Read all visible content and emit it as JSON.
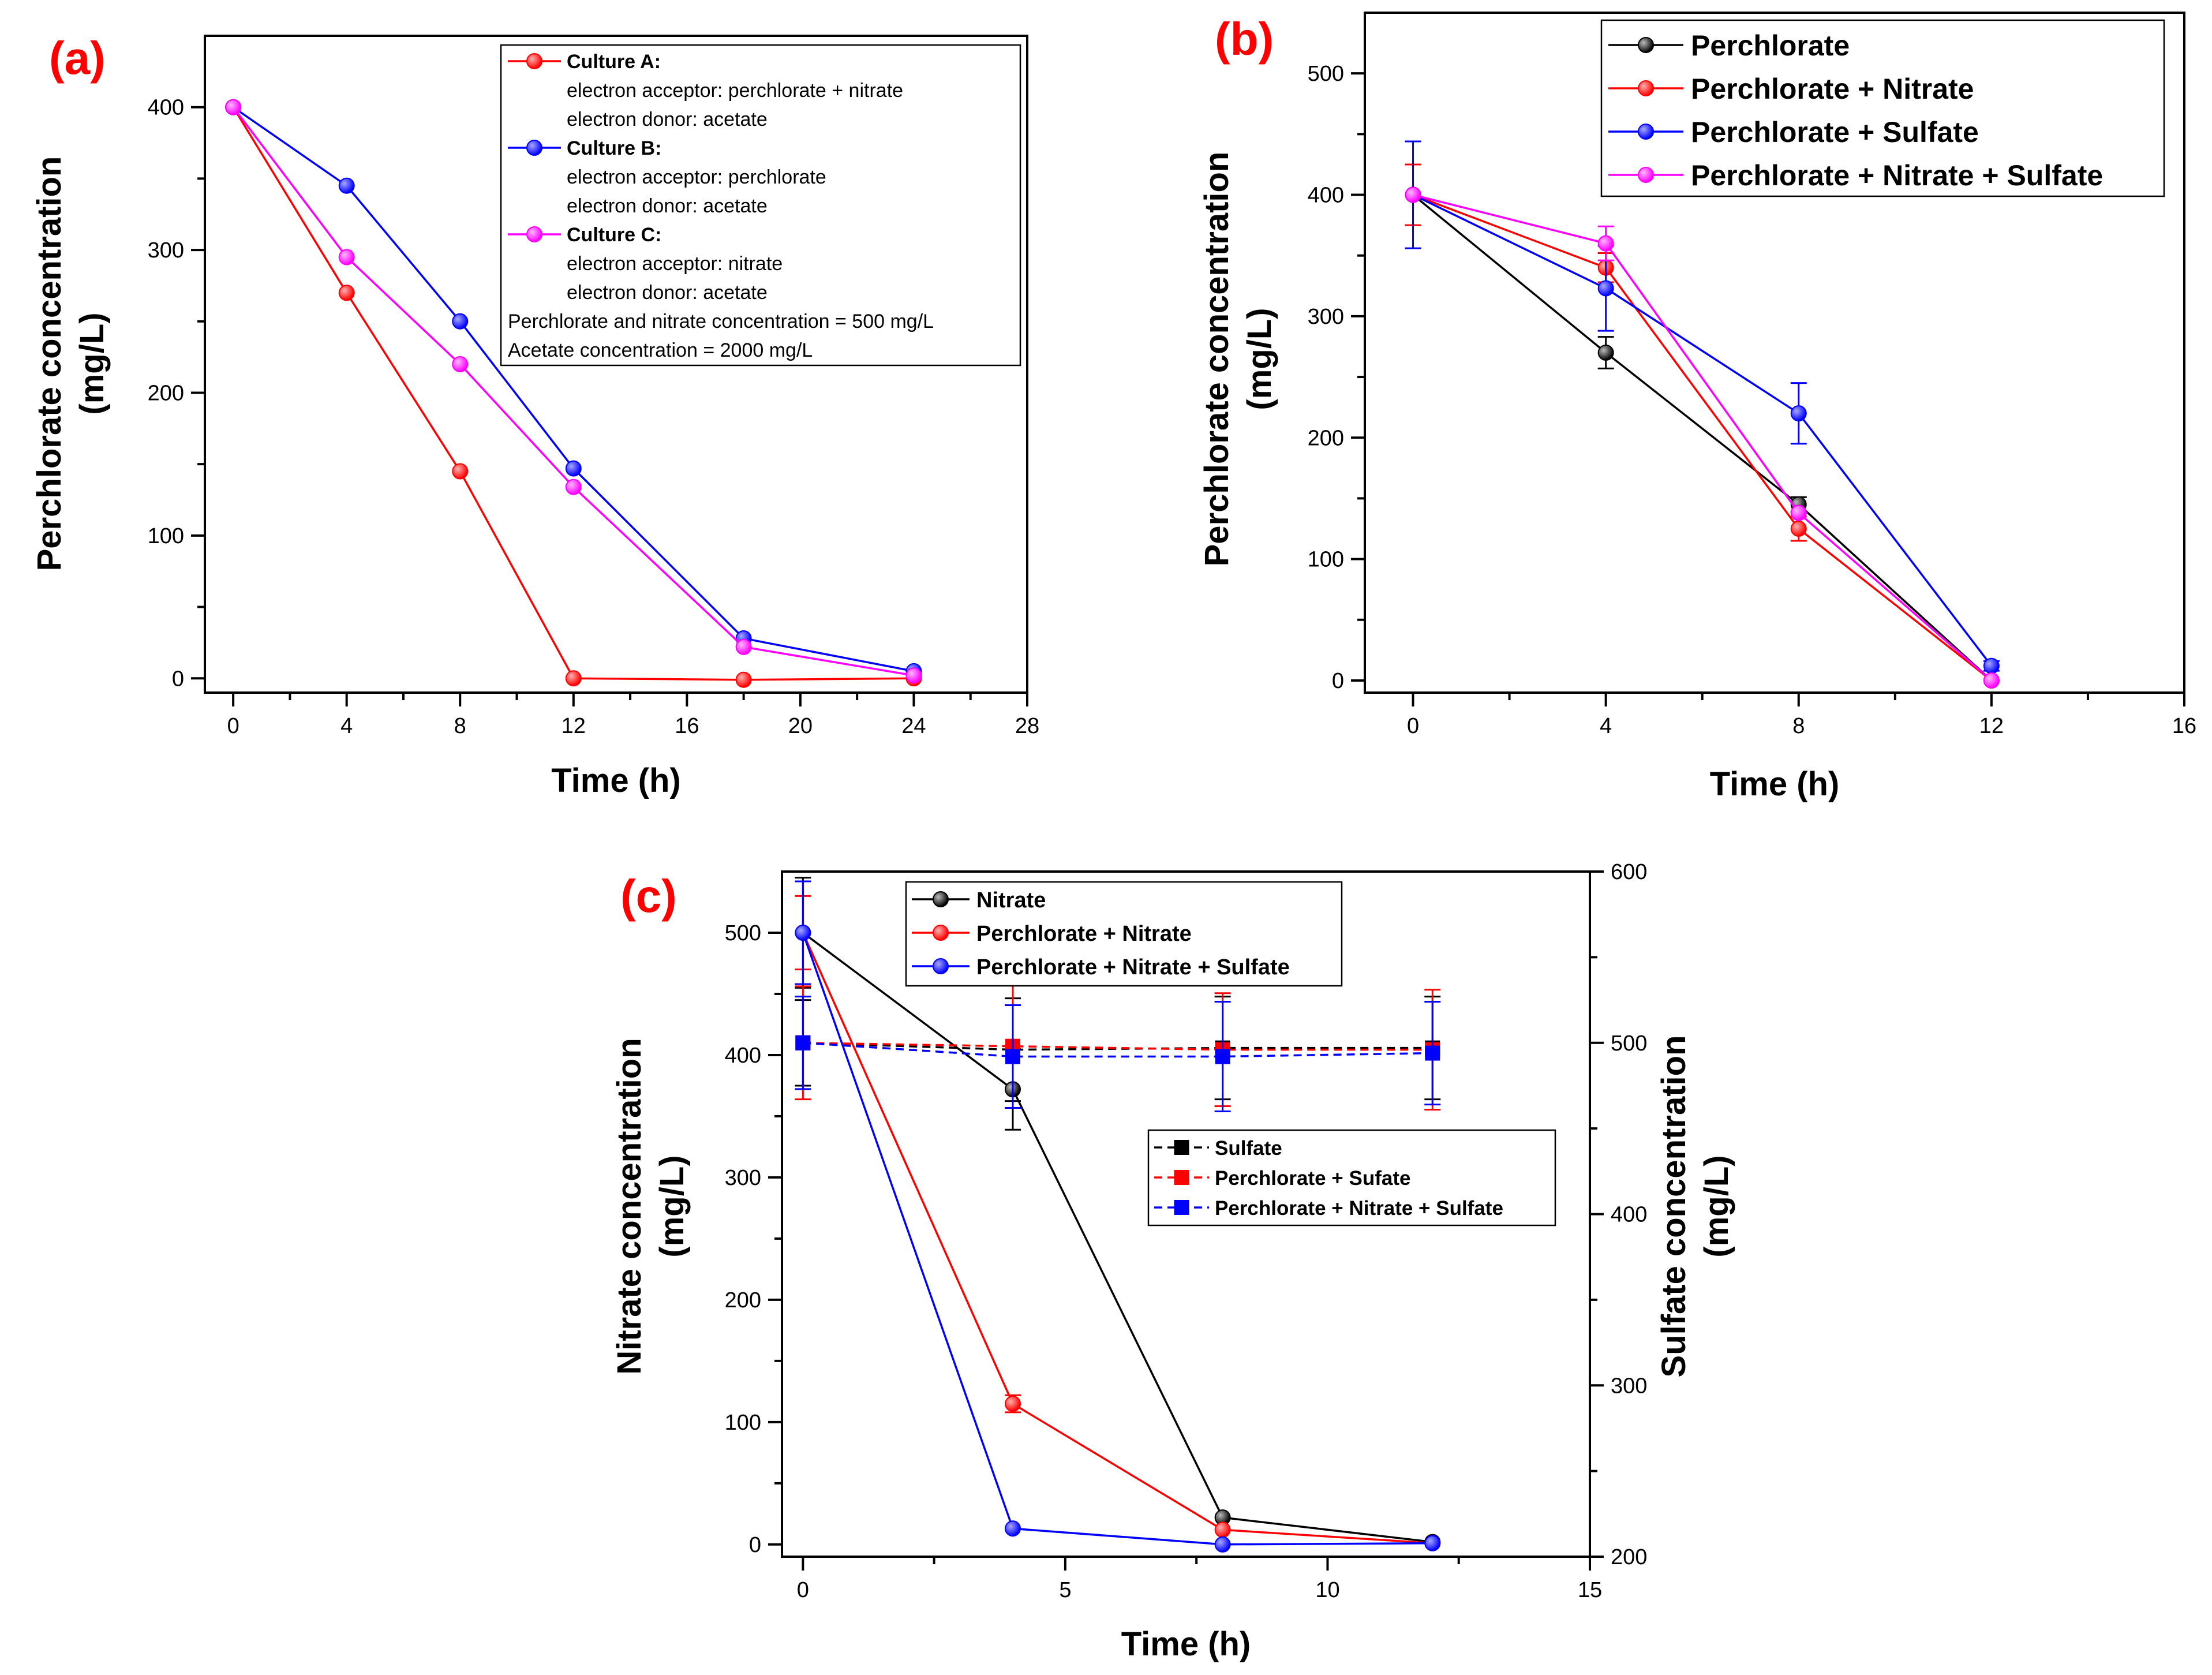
{
  "chart_data": [
    {
      "panel": "(a)",
      "type": "line",
      "xlabel": "Time (h)",
      "ylabel": [
        "Perchlorate concentration",
        "(mg/L)"
      ],
      "xlim": [
        -1,
        28
      ],
      "ylim": [
        -10,
        450
      ],
      "xticks": [
        0,
        4,
        8,
        12,
        16,
        20,
        24,
        28
      ],
      "yticks": [
        0,
        100,
        200,
        300,
        400
      ],
      "series": [
        {
          "name": "Culture A:",
          "color": "#ff0000",
          "x": [
            0,
            4,
            8,
            12,
            18,
            24
          ],
          "values": [
            400,
            270,
            145,
            0,
            -1,
            0
          ]
        },
        {
          "name": "Culture B:",
          "color": "#0000ff",
          "x": [
            0,
            4,
            8,
            12,
            18,
            24
          ],
          "values": [
            400,
            345,
            250,
            147,
            28,
            5
          ]
        },
        {
          "name": "Culture C:",
          "color": "#ff00ff",
          "x": [
            0,
            4,
            8,
            12,
            18,
            24
          ],
          "values": [
            400,
            295,
            220,
            134,
            22,
            2
          ]
        }
      ],
      "legend": {
        "entries": [
          {
            "series": 0,
            "title": "Culture A:",
            "lines": [
              "electron acceptor: perchlorate + nitrate",
              "electron donor: acetate"
            ]
          },
          {
            "series": 1,
            "title": "Culture B:",
            "lines": [
              "electron acceptor: perchlorate",
              "electron donor: acetate"
            ]
          },
          {
            "series": 2,
            "title": "Culture C:",
            "lines": [
              "electron acceptor: nitrate",
              "electron donor: acetate"
            ]
          }
        ],
        "notes": [
          "Perchlorate and nitrate concentration = 500 mg/L",
          "Acetate concentration = 2000 mg/L"
        ]
      }
    },
    {
      "panel": "(b)",
      "type": "line",
      "xlabel": "Time (h)",
      "ylabel": [
        "Perchlorate concentration",
        "(mg/L)"
      ],
      "xlim": [
        -1,
        16
      ],
      "ylim": [
        -10,
        550
      ],
      "xticks": [
        0,
        4,
        8,
        12,
        16
      ],
      "yticks": [
        0,
        100,
        200,
        300,
        400,
        500
      ],
      "series": [
        {
          "name": "Perchlorate",
          "color": "#000000",
          "x": [
            0,
            4,
            8,
            12
          ],
          "values": [
            400,
            270,
            145,
            0
          ],
          "err": [
            0,
            13,
            6,
            0
          ]
        },
        {
          "name": "Perchlorate + Nitrate",
          "color": "#ff0000",
          "x": [
            0,
            4,
            8,
            12
          ],
          "values": [
            400,
            340,
            125,
            0
          ],
          "err": [
            25,
            12,
            10,
            0
          ]
        },
        {
          "name": "Perchlorate + Sulfate",
          "color": "#0000ff",
          "x": [
            0,
            4,
            8,
            12
          ],
          "values": [
            400,
            323,
            220,
            12
          ],
          "err": [
            44,
            35,
            25,
            4
          ]
        },
        {
          "name": "Perchlorate + Nitrate + Sulfate",
          "color": "#ff00ff",
          "x": [
            0,
            4,
            8,
            12
          ],
          "values": [
            400,
            360,
            138,
            0
          ],
          "err": [
            0,
            14,
            0,
            0
          ]
        }
      ]
    },
    {
      "panel": "(c)",
      "type": "line",
      "xlabel": "Time (h)",
      "ylabel": [
        "Nitrate concentration",
        "(mg/L)"
      ],
      "y2label": [
        "Sulfate concentration",
        "(mg/L)"
      ],
      "xlim": [
        -0.4,
        15
      ],
      "ylim": [
        -10,
        550
      ],
      "y2lim": [
        200,
        600
      ],
      "xticks": [
        0,
        5,
        10,
        15
      ],
      "yticks": [
        0,
        100,
        200,
        300,
        400,
        500
      ],
      "y2ticks": [
        200,
        300,
        400,
        500,
        600
      ],
      "series": [
        {
          "name": "Nitrate",
          "axis": "left",
          "color": "#000000",
          "x": [
            0,
            4,
            8,
            12
          ],
          "values": [
            500,
            372,
            22,
            2
          ],
          "err": [
            45,
            33,
            0,
            0
          ]
        },
        {
          "name": "Perchlorate + Nitrate",
          "axis": "left",
          "color": "#ff0000",
          "x": [
            0,
            4,
            8,
            12
          ],
          "values": [
            500,
            115,
            12,
            1
          ],
          "err": [
            30,
            7,
            0,
            0
          ]
        },
        {
          "name": "Perchlorate + Nitrate + Sulfate",
          "axis": "left",
          "color": "#0000ff",
          "x": [
            0,
            4,
            8,
            12
          ],
          "values": [
            500,
            13,
            0,
            1
          ],
          "err": [
            42,
            0,
            0,
            0
          ]
        },
        {
          "name": "Sulfate",
          "axis": "right",
          "marker": "square",
          "dashed": true,
          "color": "#000000",
          "x": [
            0,
            4,
            8,
            12
          ],
          "values": [
            500,
            496,
            497,
            497
          ],
          "err": [
            25,
            30,
            30,
            30
          ]
        },
        {
          "name": "Perchlorate + Sufate",
          "axis": "right",
          "marker": "square",
          "dashed": true,
          "color": "#ff0000",
          "x": [
            0,
            4,
            8,
            12
          ],
          "values": [
            500,
            498,
            496,
            496
          ],
          "err": [
            33,
            36,
            33,
            35
          ]
        },
        {
          "name": "Perchlorate + Nitrate + Sulfate",
          "axis": "right",
          "marker": "square",
          "dashed": true,
          "color": "#0000ff",
          "x": [
            0,
            4,
            8,
            12
          ],
          "values": [
            500,
            492,
            492,
            494
          ],
          "err": [
            27,
            30,
            32,
            30
          ]
        }
      ]
    }
  ]
}
